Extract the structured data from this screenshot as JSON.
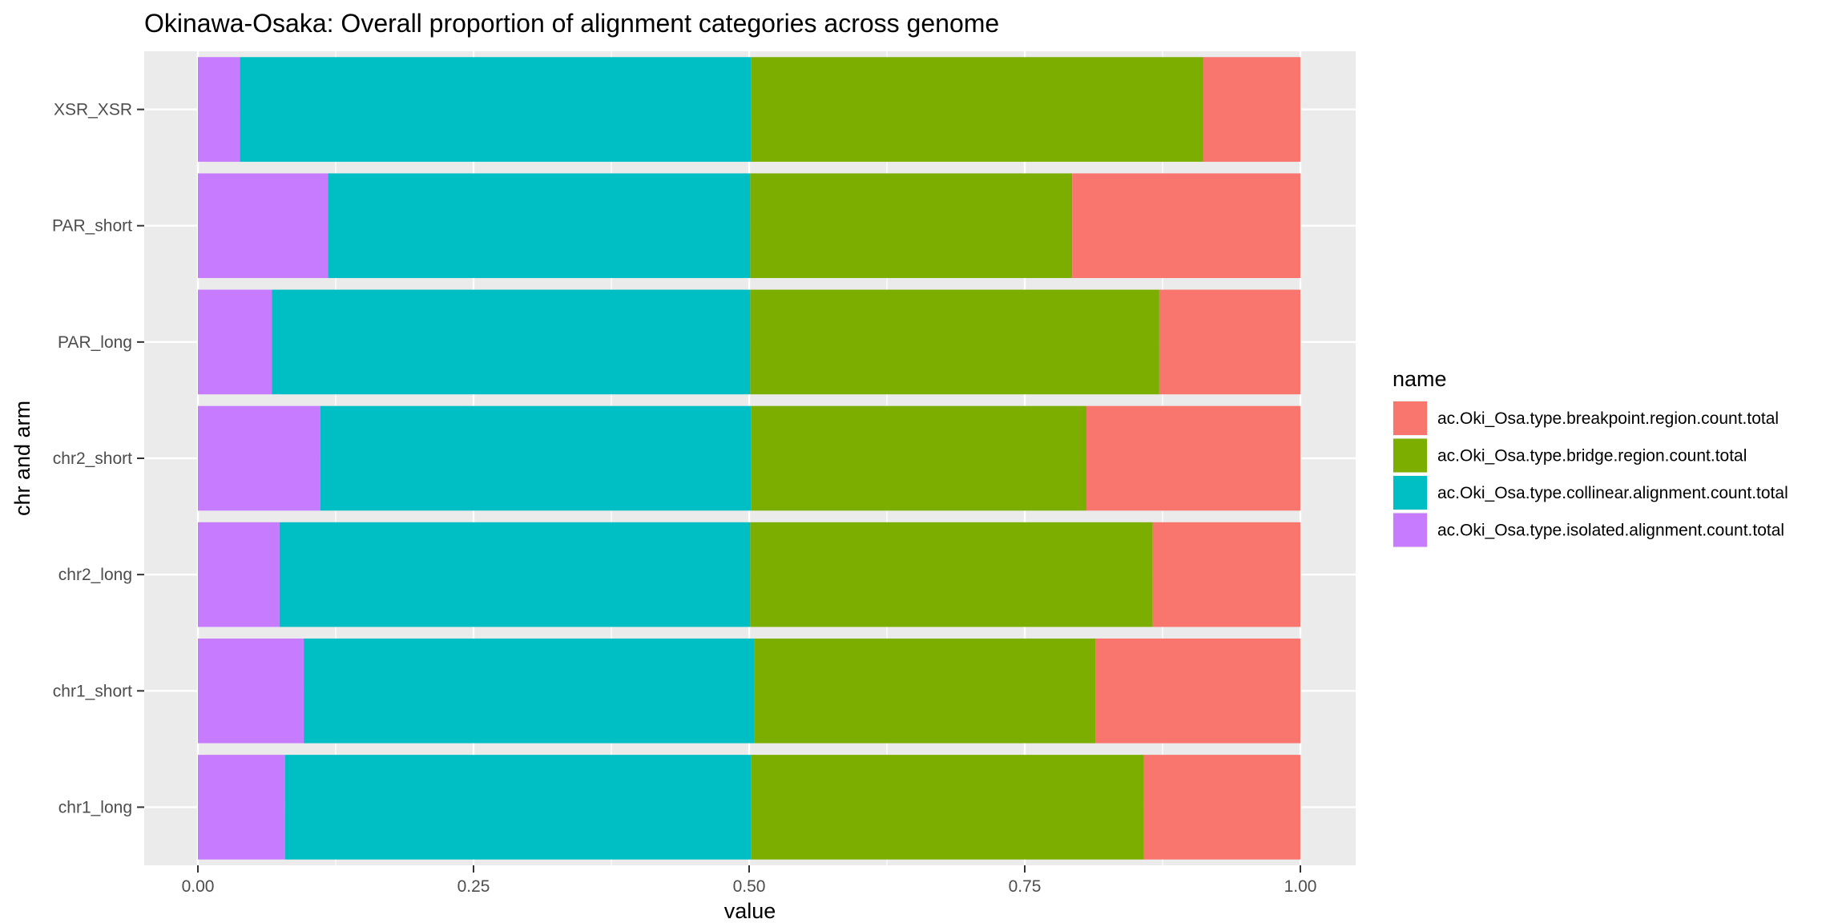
{
  "chart_data": {
    "type": "bar",
    "orientation": "horizontal",
    "stacked": true,
    "title": "Okinawa-Osaka: Overall proportion of alignment categories across genome",
    "xlabel": "value",
    "ylabel": "chr and arm",
    "xlim": [
      0,
      1
    ],
    "x_ticks": [
      "0.00",
      "0.25",
      "0.50",
      "0.75",
      "1.00"
    ],
    "x_tick_values": [
      0,
      0.25,
      0.5,
      0.75,
      1.0
    ],
    "categories": [
      "chr1_long",
      "chr1_short",
      "chr2_long",
      "chr2_short",
      "PAR_long",
      "PAR_short",
      "XSR_XSR"
    ],
    "stack_order": [
      "ac.Oki_Osa.type.isolated.alignment.count.total",
      "ac.Oki_Osa.type.collinear.alignment.count.total",
      "ac.Oki_Osa.type.bridge.region.count.total",
      "ac.Oki_Osa.type.breakpoint.region.count.total"
    ],
    "series": [
      {
        "name": "ac.Oki_Osa.type.breakpoint.region.count.total",
        "color": "#F8766D",
        "values": [
          0.142,
          0.186,
          0.134,
          0.194,
          0.128,
          0.207,
          0.088
        ]
      },
      {
        "name": "ac.Oki_Osa.type.bridge.region.count.total",
        "color": "#7CAE00",
        "values": [
          0.356,
          0.309,
          0.365,
          0.304,
          0.371,
          0.292,
          0.41
        ]
      },
      {
        "name": "ac.Oki_Osa.type.collinear.alignment.count.total",
        "color": "#00BFC4",
        "values": [
          0.423,
          0.409,
          0.427,
          0.391,
          0.434,
          0.383,
          0.464
        ]
      },
      {
        "name": "ac.Oki_Osa.type.isolated.alignment.count.total",
        "color": "#C77CFF",
        "values": [
          0.079,
          0.096,
          0.074,
          0.111,
          0.067,
          0.118,
          0.038
        ]
      }
    ],
    "legend_title": "name",
    "legend_position": "right",
    "grid": true,
    "panel_background": "#EBEBEB"
  }
}
